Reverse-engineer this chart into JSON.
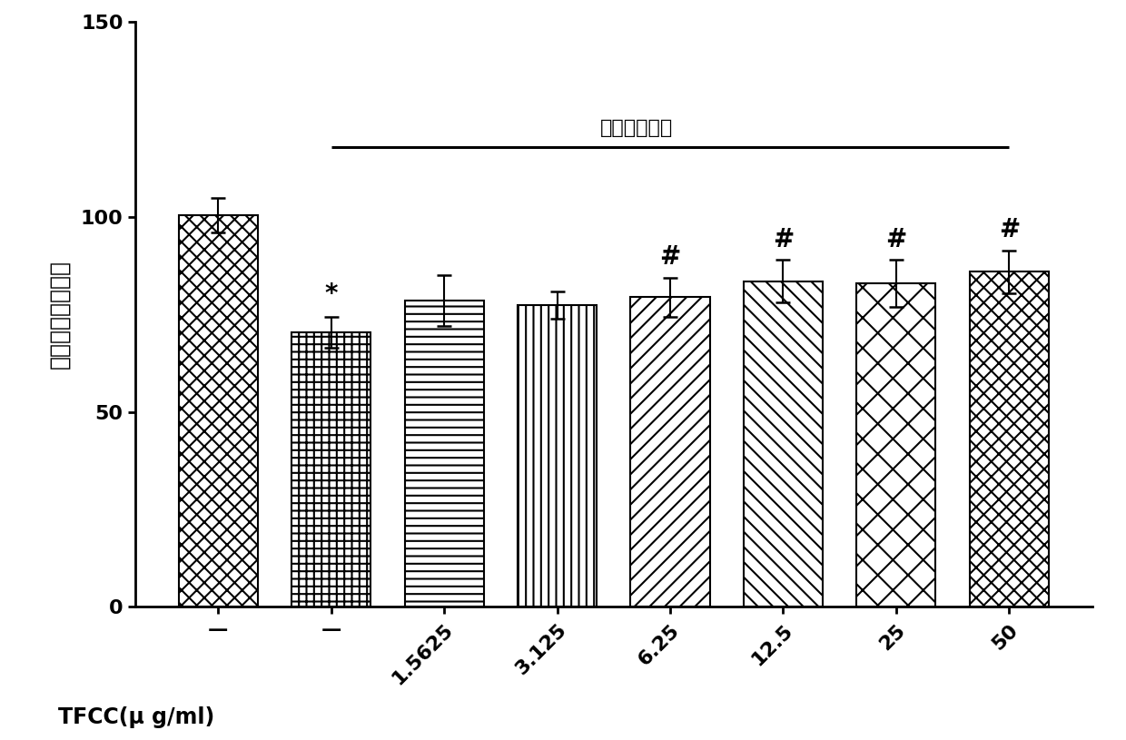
{
  "categories": [
    "—",
    "—",
    "1.5625",
    "3.125",
    "6.25",
    "12.5",
    "25",
    "50"
  ],
  "values": [
    100.5,
    70.5,
    78.5,
    77.5,
    79.5,
    83.5,
    83.0,
    86.0
  ],
  "errors": [
    4.5,
    4.0,
    6.5,
    3.5,
    5.0,
    5.5,
    6.0,
    5.5
  ],
  "hatch_list": [
    "xx",
    "++",
    "==",
    "||",
    "//",
    "\\\\",
    "x|",
    "x/"
  ],
  "ylabel": "细胞存活率（％）",
  "xlabel_prefix": "TFCC(μ g/ml)",
  "ylim": [
    0,
    150
  ],
  "yticks": [
    0,
    50,
    100,
    150
  ],
  "annotation_text": "缺氧复氧诱导",
  "star_bars": [
    1
  ],
  "hash_bars": [
    4,
    5,
    6,
    7
  ],
  "background_color": "#ffffff",
  "bar_edge_color": "#000000",
  "bar_face_color": "#ffffff",
  "label_fontsize": 18,
  "tick_fontsize": 16,
  "annot_fontsize": 16,
  "sig_fontsize": 20
}
